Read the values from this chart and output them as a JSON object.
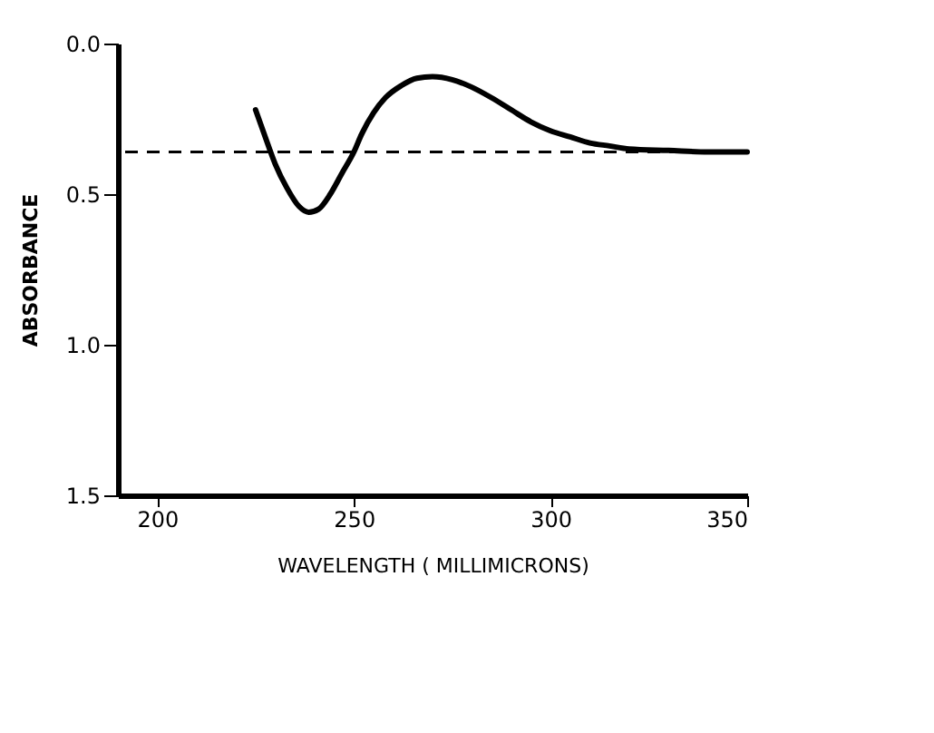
{
  "chart_data": {
    "type": "line",
    "xlabel": "WAVELENGTH   ( MILLIMICRONS)",
    "ylabel": "ABSORBANCE",
    "x": [
      225,
      228,
      230,
      233,
      236,
      238.5,
      241,
      244,
      247,
      250,
      252,
      255,
      258,
      262,
      266,
      270,
      275,
      280,
      285,
      290,
      295,
      300,
      305,
      310,
      315,
      320,
      330,
      340,
      350
    ],
    "series": [
      {
        "color": "#000000",
        "values": [
          0.22,
          0.33,
          0.4,
          0.48,
          0.54,
          0.56,
          0.55,
          0.5,
          0.43,
          0.36,
          0.3,
          0.23,
          0.18,
          0.14,
          0.115,
          0.11,
          0.12,
          0.145,
          0.18,
          0.22,
          0.26,
          0.29,
          0.31,
          0.33,
          0.34,
          0.35,
          0.355,
          0.36,
          0.36
        ]
      }
    ],
    "xlim": [
      190,
      350
    ],
    "ylim": [
      1.5,
      0
    ],
    "xticks": [
      200,
      250,
      300,
      350
    ],
    "yticks": [
      {
        "value": 0,
        "label": "0.0"
      },
      0.5,
      {
        "value": 1,
        "label": "1.0"
      },
      1.5
    ],
    "ref_lines": [
      {
        "axis": "y",
        "value": 0.36,
        "color": "#000000",
        "line_style": "dashed"
      }
    ],
    "grid": false,
    "marker": "none",
    "line_style": "solid"
  }
}
